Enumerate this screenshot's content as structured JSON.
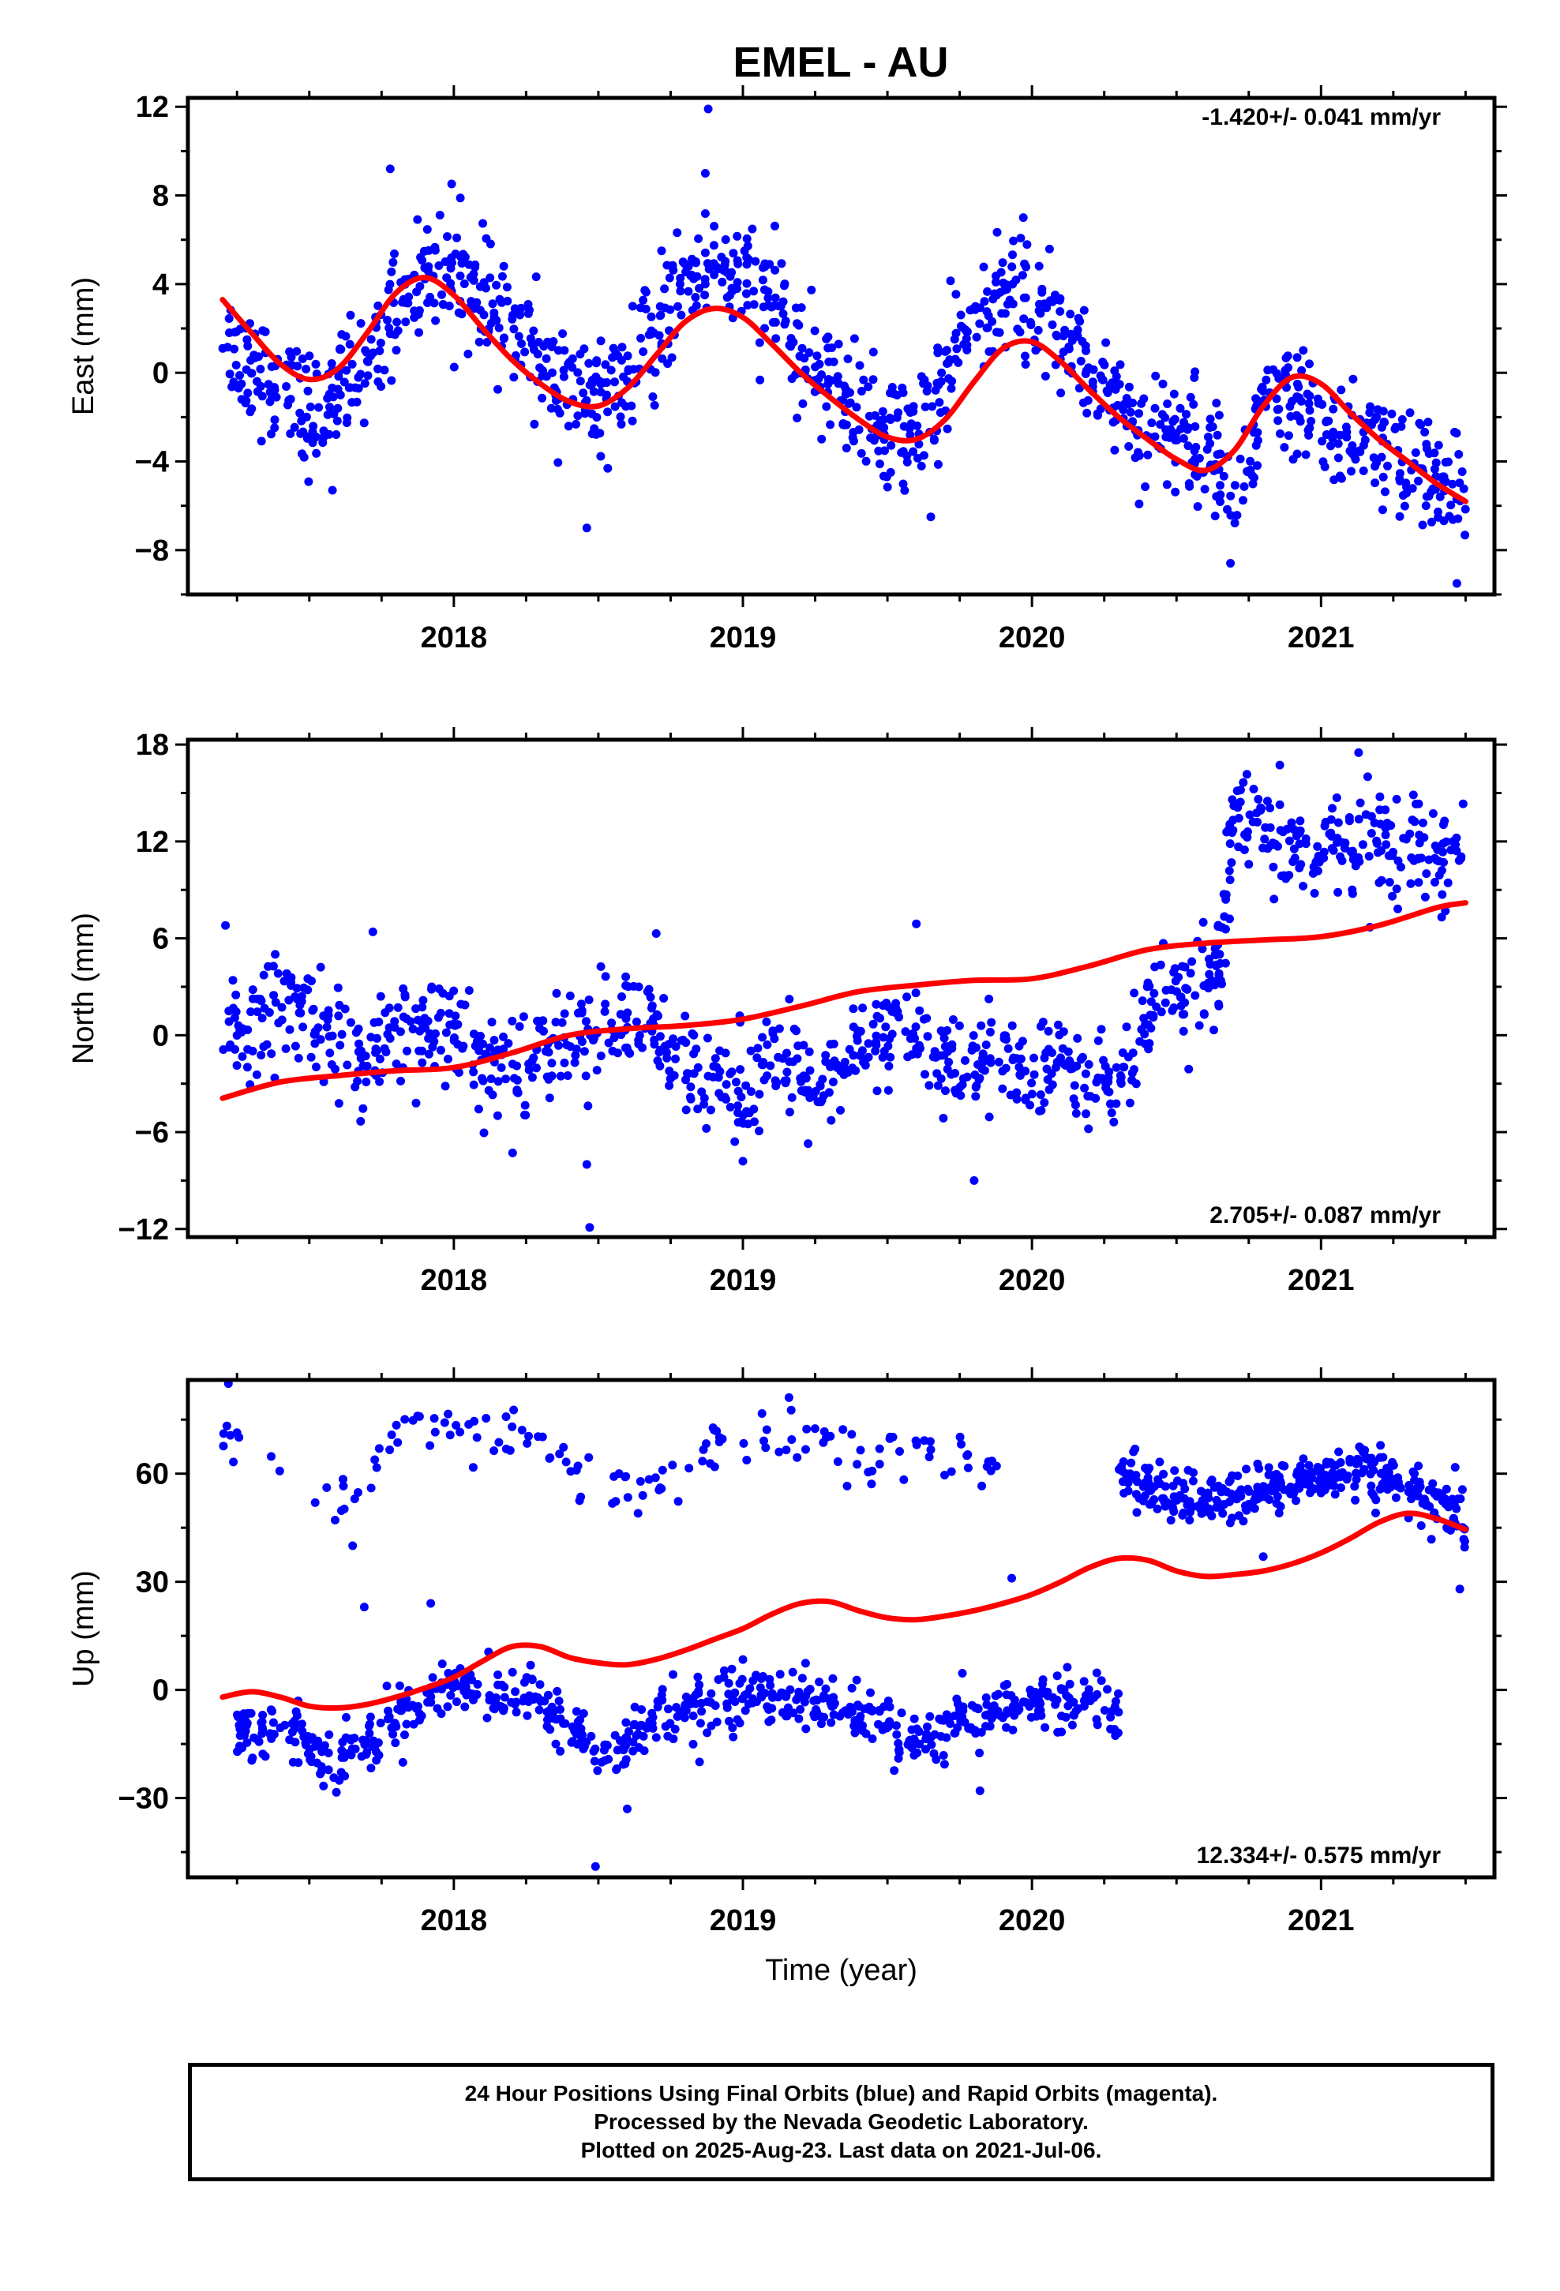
{
  "title": "EMEL - AU",
  "footer": {
    "lines": [
      "24 Hour Positions Using Final Orbits (blue) and Rapid Orbits (magenta).",
      "Processed by the Nevada Geodetic Laboratory.",
      "Plotted on 2025-Aug-23. Last data on 2021-Jul-06."
    ]
  },
  "colors": {
    "points": "#0000ff",
    "fit": "#ff0000",
    "frame": "#000000"
  },
  "chart_data": [
    {
      "type": "scatter",
      "ylabel": "East (mm)",
      "xlabel": "",
      "rate": "-1.420+/- 0.041 mm/yr",
      "rate_position": "top-right",
      "xlim": [
        2017.08,
        2021.6
      ],
      "ylim": [
        -10,
        12.4
      ],
      "xticks": [
        2018,
        2019,
        2020,
        2021
      ],
      "yticks": [
        -8,
        -4,
        0,
        4,
        8,
        12
      ],
      "yticklabels": [
        "−8",
        "−4",
        "0",
        "4",
        "8",
        "12"
      ],
      "series": [
        {
          "role": "points",
          "x": [
            2017.2,
            2017.3,
            2017.4,
            2017.5,
            2017.6,
            2017.7,
            2017.8,
            2017.9,
            2018.0,
            2018.1,
            2018.2,
            2018.3,
            2018.4,
            2018.5,
            2018.6,
            2018.7,
            2018.8,
            2018.9,
            2019.0,
            2019.1,
            2019.2,
            2019.3,
            2019.4,
            2019.5,
            2019.6,
            2019.7,
            2019.8,
            2019.9,
            2020.0,
            2020.1,
            2020.2,
            2020.3,
            2020.4,
            2020.5,
            2020.6,
            2020.7,
            2020.8,
            2020.9,
            2021.0,
            2021.1,
            2021.2,
            2021.3,
            2021.4,
            2021.5
          ],
          "y": [
            1.5,
            0.5,
            -0.8,
            -2.0,
            -1.0,
            0.8,
            3.0,
            4.5,
            4.8,
            3.2,
            2.0,
            0.5,
            -0.8,
            -1.5,
            -0.5,
            2.0,
            4.0,
            5.0,
            4.2,
            2.8,
            1.2,
            -0.3,
            -1.8,
            -2.8,
            -2.5,
            -0.5,
            2.5,
            3.5,
            3.0,
            1.8,
            0.3,
            -1.5,
            -2.5,
            -2.8,
            -3.2,
            -5.5,
            -2.0,
            -1.5,
            -2.5,
            -3.0,
            -3.5,
            -4.0,
            -5.0,
            -6.0
          ],
          "std": 1.3,
          "count_per_segment": 28,
          "outliers": [
            [
              2017.58,
              -5.3
            ],
            [
              2017.78,
              9.2
            ],
            [
              2018.46,
              -7.0
            ],
            [
              2018.87,
              9.0
            ],
            [
              2018.88,
              11.9
            ],
            [
              2019.65,
              -6.5
            ],
            [
              2019.97,
              7.0
            ],
            [
              2021.47,
              -9.5
            ]
          ]
        },
        {
          "role": "fit",
          "x": [
            2017.2,
            2017.3,
            2017.4,
            2017.5,
            2017.6,
            2017.7,
            2017.8,
            2017.9,
            2018.0,
            2018.1,
            2018.2,
            2018.3,
            2018.4,
            2018.5,
            2018.6,
            2018.7,
            2018.8,
            2018.9,
            2019.0,
            2019.1,
            2019.2,
            2019.3,
            2019.4,
            2019.5,
            2019.6,
            2019.7,
            2019.8,
            2019.9,
            2020.0,
            2020.1,
            2020.2,
            2020.3,
            2020.4,
            2020.5,
            2020.6,
            2020.7,
            2020.8,
            2020.9,
            2021.0,
            2021.1,
            2021.2,
            2021.3,
            2021.4,
            2021.5
          ],
          "y": [
            3.3,
            1.8,
            0.4,
            -0.3,
            0.2,
            1.8,
            3.6,
            4.3,
            3.5,
            2.0,
            0.6,
            -0.5,
            -1.3,
            -1.5,
            -0.7,
            0.8,
            2.3,
            2.9,
            2.5,
            1.3,
            0.0,
            -1.1,
            -2.1,
            -2.9,
            -3.0,
            -2.1,
            -0.4,
            1.1,
            1.4,
            0.5,
            -0.8,
            -2.0,
            -3.0,
            -3.9,
            -4.4,
            -3.5,
            -1.5,
            -0.2,
            -0.5,
            -1.8,
            -3.0,
            -4.0,
            -5.0,
            -5.8
          ]
        }
      ]
    },
    {
      "type": "scatter",
      "ylabel": "North (mm)",
      "xlabel": "",
      "rate": "2.705+/- 0.087 mm/yr",
      "rate_position": "bottom-right",
      "xlim": [
        2017.08,
        2021.6
      ],
      "ylim": [
        -12.5,
        18.3
      ],
      "xticks": [
        2018,
        2019,
        2020,
        2021
      ],
      "yticks": [
        -12,
        -6,
        0,
        6,
        12,
        18
      ],
      "yticklabels": [
        "−12",
        "−6",
        "0",
        "6",
        "12",
        "18"
      ],
      "series": [
        {
          "role": "points",
          "x": [
            2017.2,
            2017.3,
            2017.4,
            2017.5,
            2017.6,
            2017.7,
            2017.8,
            2017.9,
            2018.0,
            2018.1,
            2018.2,
            2018.3,
            2018.4,
            2018.5,
            2018.6,
            2018.7,
            2018.8,
            2018.9,
            2019.0,
            2019.1,
            2019.2,
            2019.3,
            2019.4,
            2019.5,
            2019.6,
            2019.7,
            2019.8,
            2019.9,
            2020.0,
            2020.1,
            2020.2,
            2020.3,
            2020.4,
            2020.5,
            2020.6,
            2020.65,
            2020.7,
            2020.8,
            2020.9,
            2021.0,
            2021.1,
            2021.2,
            2021.3,
            2021.4,
            2021.5
          ],
          "y": [
            1.0,
            0.5,
            1.8,
            1.5,
            -0.5,
            -1.8,
            -0.5,
            0.2,
            0.5,
            -1.5,
            -2.0,
            -1.0,
            0.0,
            0.5,
            1.0,
            -0.5,
            -2.0,
            -2.5,
            -3.0,
            -1.5,
            -2.5,
            -3.5,
            -1.5,
            0.5,
            -0.5,
            -1.5,
            -2.0,
            -1.5,
            -2.5,
            -2.0,
            -3.0,
            -3.0,
            1.0,
            2.5,
            3.0,
            3.5,
            14.0,
            12.0,
            11.5,
            11.5,
            12.0,
            12.0,
            11.5,
            11.5,
            11.5
          ],
          "std": 1.6,
          "count_per_segment": 24,
          "outliers": [
            [
              2017.21,
              6.8
            ],
            [
              2017.72,
              6.4
            ],
            [
              2018.46,
              -8.0
            ],
            [
              2018.47,
              -11.9
            ],
            [
              2018.7,
              6.3
            ],
            [
              2019.0,
              -7.8
            ],
            [
              2019.6,
              6.9
            ],
            [
              2019.8,
              -9.0
            ],
            [
              2021.13,
              17.5
            ]
          ]
        },
        {
          "role": "fit",
          "x": [
            2017.2,
            2017.4,
            2017.6,
            2017.8,
            2018.0,
            2018.2,
            2018.4,
            2018.6,
            2018.8,
            2019.0,
            2019.2,
            2019.4,
            2019.6,
            2019.8,
            2020.0,
            2020.2,
            2020.4,
            2020.6,
            2020.8,
            2021.0,
            2021.2,
            2021.4,
            2021.5
          ],
          "y": [
            -3.9,
            -2.9,
            -2.5,
            -2.2,
            -2.0,
            -1.1,
            0.0,
            0.4,
            0.6,
            1.0,
            1.8,
            2.7,
            3.1,
            3.4,
            3.5,
            4.3,
            5.3,
            5.7,
            5.9,
            6.1,
            6.8,
            7.9,
            8.2
          ]
        }
      ]
    },
    {
      "type": "scatter",
      "ylabel": "Up (mm)",
      "xlabel": "Time (year)",
      "rate": "12.334+/- 0.575 mm/yr",
      "rate_position": "bottom-right",
      "xlim": [
        2017.08,
        2021.6
      ],
      "ylim": [
        -52,
        86
      ],
      "xticks": [
        2018,
        2019,
        2020,
        2021
      ],
      "yticks": [
        -30,
        0,
        30,
        60
      ],
      "yticklabels": [
        "−30",
        "0",
        "30",
        "60"
      ],
      "series": [
        {
          "role": "points",
          "x": [
            2017.25,
            2017.3,
            2017.4,
            2017.5,
            2017.6,
            2017.7,
            2017.8,
            2017.9,
            2018.0,
            2018.1,
            2018.2,
            2018.3,
            2018.4,
            2018.5,
            2018.6,
            2018.7,
            2018.8,
            2018.9,
            2019.0,
            2019.1,
            2019.2,
            2019.3,
            2019.4,
            2019.5,
            2019.6,
            2019.7,
            2019.8,
            2019.9,
            2020.0,
            2020.1,
            2020.2,
            2020.3
          ],
          "y": [
            -10,
            -12,
            -10,
            -15,
            -18,
            -15,
            -8,
            -2,
            3,
            0,
            -2,
            -3,
            -10,
            -18,
            -15,
            -8,
            -5,
            -3,
            0,
            -2,
            -2,
            -4,
            -8,
            -10,
            -15,
            -12,
            -8,
            -5,
            -4,
            -3,
            -2,
            -8
          ],
          "std": 4.0,
          "count_per_segment": 22,
          "outliers": [
            [
              2017.69,
              23
            ],
            [
              2017.92,
              24
            ],
            [
              2018.49,
              -49
            ],
            [
              2018.6,
              -33
            ],
            [
              2018.85,
              -20
            ],
            [
              2019.82,
              -28
            ],
            [
              2019.93,
              31
            ]
          ]
        },
        {
          "role": "points",
          "x": [
            2017.2,
            2017.25,
            2017.6,
            2017.7,
            2017.8,
            2017.9,
            2018.0,
            2018.1,
            2018.2,
            2018.3,
            2018.4,
            2018.5,
            2018.6,
            2018.7,
            2018.8,
            2018.9,
            2019.0,
            2019.1,
            2019.2,
            2019.3,
            2019.4,
            2019.5,
            2019.6,
            2019.7,
            2019.8,
            2019.9
          ],
          "y": [
            75,
            68,
            52,
            60,
            70,
            72,
            73,
            70,
            72,
            66,
            62,
            58,
            56,
            58,
            62,
            66,
            68,
            70,
            72,
            68,
            65,
            64,
            66,
            62,
            60,
            66
          ],
          "std": 4.0,
          "count_per_segment": 6,
          "outliers": [
            [
              2017.22,
              85
            ],
            [
              2017.65,
              40
            ]
          ]
        },
        {
          "role": "points",
          "x": [
            2020.3,
            2020.4,
            2020.5,
            2020.6,
            2020.7,
            2020.8,
            2020.9,
            2021.0,
            2021.1,
            2021.2,
            2021.3,
            2021.4,
            2021.5
          ],
          "y": [
            60,
            57,
            53,
            52,
            53,
            55,
            57,
            59,
            62,
            60,
            56,
            52,
            46
          ],
          "std": 3.6,
          "count_per_segment": 30,
          "outliers": [
            [
              2020.8,
              37
            ],
            [
              2021.48,
              28
            ]
          ]
        },
        {
          "role": "fit",
          "x": [
            2017.2,
            2017.3,
            2017.4,
            2017.5,
            2017.6,
            2017.7,
            2017.8,
            2017.9,
            2018.0,
            2018.1,
            2018.2,
            2018.3,
            2018.4,
            2018.5,
            2018.6,
            2018.7,
            2018.8,
            2018.9,
            2019.0,
            2019.1,
            2019.2,
            2019.3,
            2019.4,
            2019.5,
            2019.6,
            2019.7,
            2019.8,
            2019.9,
            2020.0,
            2020.1,
            2020.2,
            2020.3,
            2020.4,
            2020.5,
            2020.6,
            2020.7,
            2020.8,
            2020.9,
            2021.0,
            2021.1,
            2021.2,
            2021.3,
            2021.4,
            2021.5
          ],
          "y": [
            -2,
            -0.5,
            -2,
            -4.5,
            -5,
            -4,
            -2,
            0.5,
            3.5,
            8,
            12,
            12,
            9,
            7.5,
            7,
            8.5,
            11,
            14,
            17,
            21,
            24,
            24.5,
            22,
            20,
            19.5,
            20.5,
            22,
            24,
            26.5,
            30,
            34,
            36.5,
            36,
            33,
            31.5,
            32,
            33,
            35,
            38,
            42,
            46.5,
            49,
            47.5,
            44.5
          ]
        }
      ]
    }
  ]
}
